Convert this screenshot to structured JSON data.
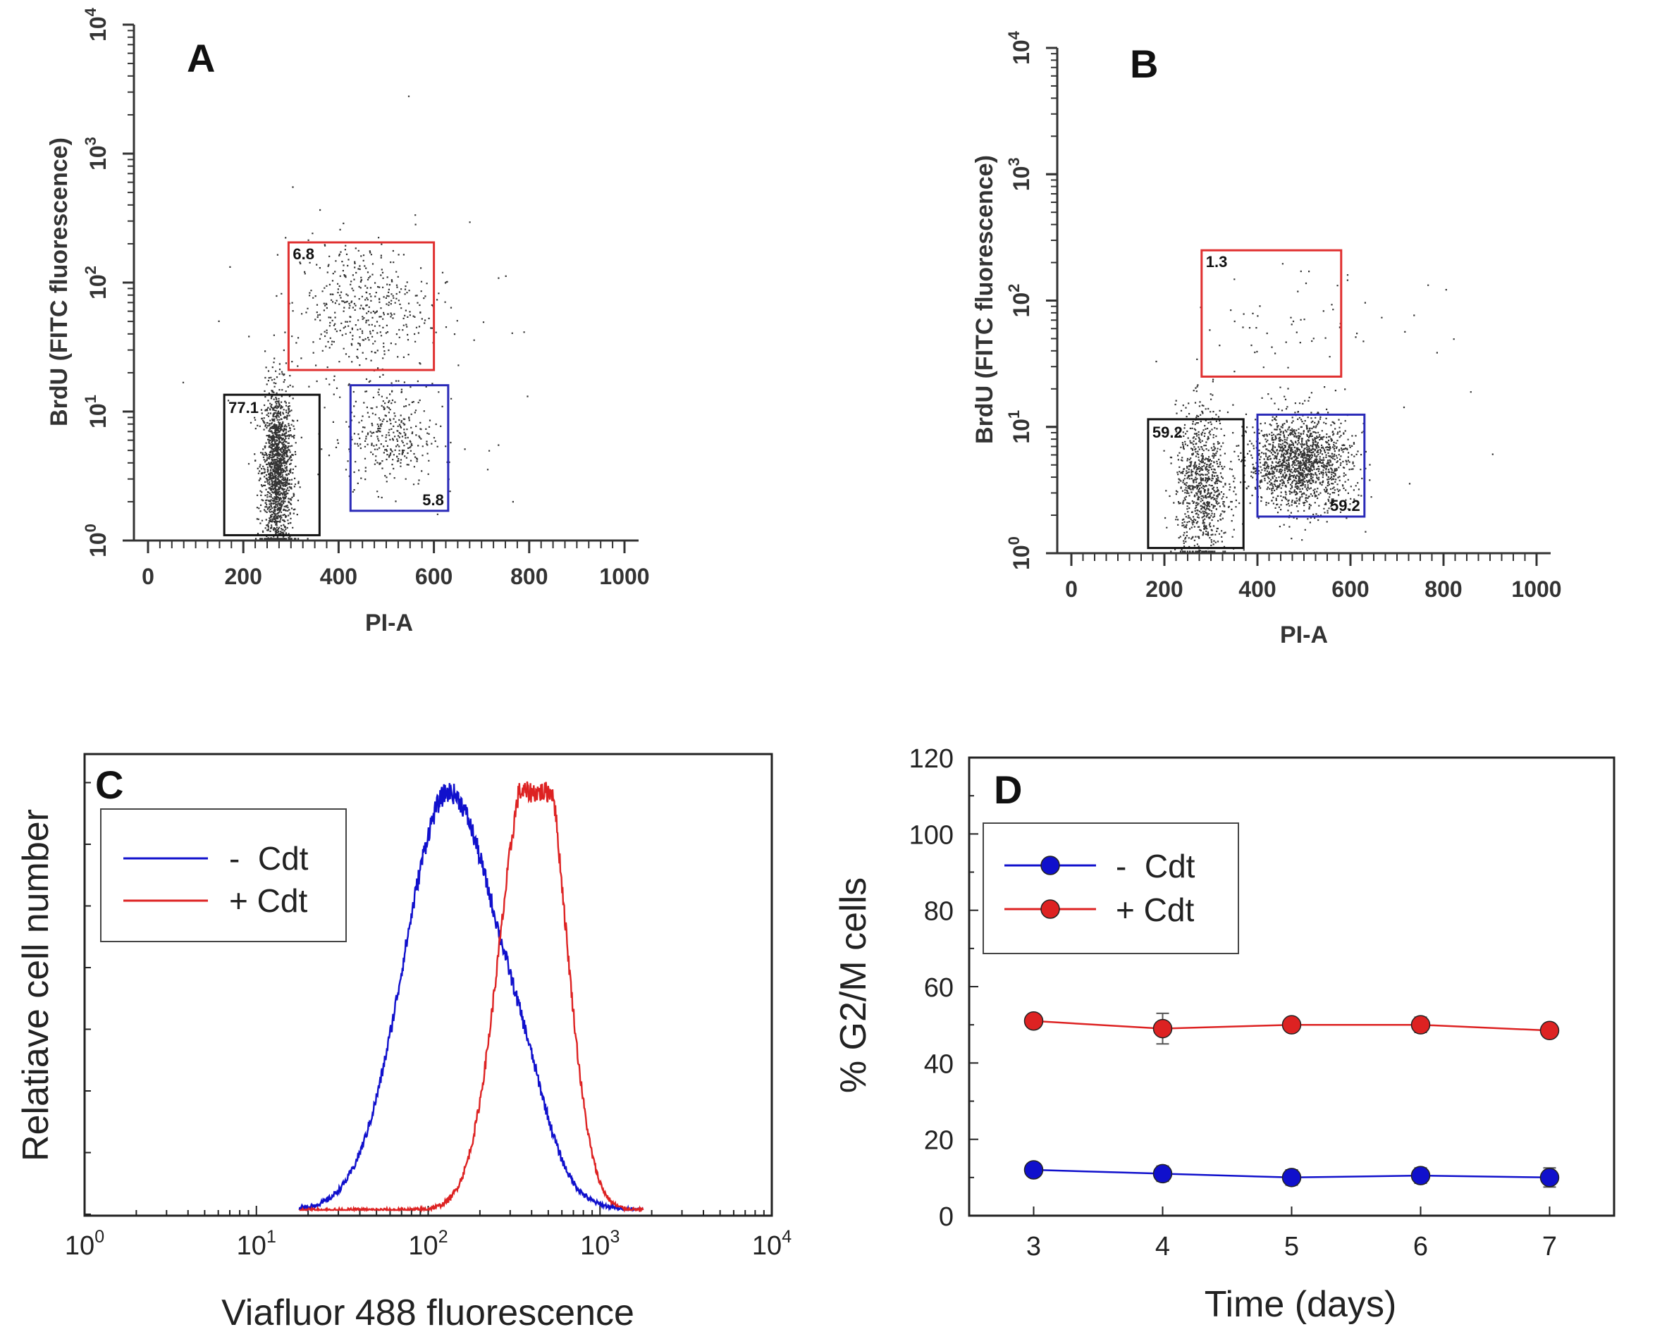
{
  "colors": {
    "minus_cdt": "#1010cc",
    "plus_cdt": "#dd2222",
    "gate_black": "#111111",
    "gate_red": "#e03030",
    "gate_blue": "#2a2ab8",
    "dots": "#333333"
  },
  "chart_data": [
    {
      "panel": "A",
      "type": "scatter",
      "xlabel": "PI-A",
      "ylabel": "BrdU (FITC fluorescence)",
      "x_range": [
        0,
        1000
      ],
      "y_scale": "log",
      "y_range": [
        1,
        10000
      ],
      "x_ticks": [
        "0",
        "200",
        "400",
        "600",
        "800",
        "1000"
      ],
      "y_ticks": [
        {
          "base": "10",
          "exp": "0"
        },
        {
          "base": "10",
          "exp": "1"
        },
        {
          "base": "10",
          "exp": "2"
        },
        {
          "base": "10",
          "exp": "3"
        },
        {
          "base": "10",
          "exp": "4"
        }
      ],
      "gates": [
        {
          "label": "77.1",
          "color": "black",
          "x": [
            160,
            360
          ],
          "y": [
            1.1,
            13.5
          ]
        },
        {
          "label": "6.8",
          "color": "red",
          "x": [
            295,
            600
          ],
          "y": [
            21,
            205
          ]
        },
        {
          "label": "5.8",
          "color": "blue",
          "x": [
            425,
            630
          ],
          "y": [
            1.7,
            16
          ]
        }
      ],
      "populations": [
        {
          "n": 1500,
          "x_mean": 270,
          "x_sd": 16,
          "logy_mean": 0.55,
          "logy_sd": 0.32
        },
        {
          "n": 320,
          "x_mean": 505,
          "x_sd": 45,
          "logy_mean": 0.82,
          "logy_sd": 0.2
        },
        {
          "n": 420,
          "x_mean": 445,
          "x_sd": 72,
          "logy_mean": 1.82,
          "logy_sd": 0.26
        },
        {
          "n": 70,
          "x_mean": 480,
          "x_sd": 180,
          "logy_mean": 1.3,
          "logy_sd": 0.6
        }
      ]
    },
    {
      "panel": "B",
      "type": "scatter",
      "xlabel": "PI-A",
      "ylabel": "BrdU (FITC fluorescence)",
      "x_range": [
        0,
        1000
      ],
      "y_scale": "log",
      "y_range": [
        1,
        10000
      ],
      "x_ticks": [
        "0",
        "200",
        "400",
        "600",
        "800",
        "1000"
      ],
      "y_ticks": [
        {
          "base": "10",
          "exp": "0"
        },
        {
          "base": "10",
          "exp": "1"
        },
        {
          "base": "10",
          "exp": "2"
        },
        {
          "base": "10",
          "exp": "3"
        },
        {
          "base": "10",
          "exp": "4"
        }
      ],
      "gates": [
        {
          "label": "59.2",
          "color": "black",
          "x": [
            165,
            370
          ],
          "y": [
            1.1,
            11.5
          ]
        },
        {
          "label": "1.3",
          "color": "red",
          "x": [
            280,
            580
          ],
          "y": [
            25,
            250
          ]
        },
        {
          "label": "59.2",
          "color": "blue",
          "x": [
            400,
            630
          ],
          "y": [
            1.95,
            12.5
          ]
        }
      ],
      "populations": [
        {
          "n": 850,
          "x_mean": 280,
          "x_sd": 28,
          "logy_mean": 0.55,
          "logy_sd": 0.3
        },
        {
          "n": 1500,
          "x_mean": 490,
          "x_sd": 55,
          "logy_mean": 0.72,
          "logy_sd": 0.18
        },
        {
          "n": 45,
          "x_mean": 460,
          "x_sd": 100,
          "logy_mean": 1.8,
          "logy_sd": 0.2
        },
        {
          "n": 40,
          "x_mean": 560,
          "x_sd": 150,
          "logy_mean": 1.2,
          "logy_sd": 0.5
        }
      ]
    },
    {
      "panel": "C",
      "type": "line",
      "xlabel": "Viafluor 488 fluorescence",
      "ylabel": "Relatiave cell number",
      "x_scale": "log",
      "x_range": [
        1,
        10000
      ],
      "x_ticks": [
        {
          "base": "10",
          "exp": "0"
        },
        {
          "base": "10",
          "exp": "1"
        },
        {
          "base": "10",
          "exp": "2"
        },
        {
          "base": "10",
          "exp": "3"
        },
        {
          "base": "10",
          "exp": "4"
        }
      ],
      "y_range": [
        0,
        100
      ],
      "y_ticks_labeled": false,
      "legend": {
        "position": "top-left",
        "entries": [
          "-  Cdt",
          "+ Cdt"
        ]
      },
      "series": [
        {
          "name": "-  Cdt",
          "color": "blue",
          "peak_log10x": 2.12,
          "peak": 100,
          "sd_left": 0.26,
          "sd_right": 0.3,
          "shoulder_log10x": 2.58,
          "shoulder": 10
        },
        {
          "name": "+ Cdt",
          "color": "red",
          "peak_log10x": 2.58,
          "peak": 100,
          "sd_left": 0.17,
          "sd_right": 0.16,
          "shoulder_log10x": 2.72,
          "shoulder": 35
        }
      ]
    },
    {
      "panel": "D",
      "type": "line",
      "xlabel": "Time (days)",
      "ylabel": "% G2/M cells",
      "x_range": [
        2.5,
        7.5
      ],
      "y_range": [
        0,
        120
      ],
      "x_ticks": [
        "3",
        "4",
        "5",
        "6",
        "7"
      ],
      "y_ticks": [
        "0",
        "20",
        "40",
        "60",
        "80",
        "100",
        "120"
      ],
      "legend": {
        "position": "top-left",
        "entries": [
          "-  Cdt",
          "+ Cdt"
        ]
      },
      "categories": [
        3,
        4,
        5,
        6,
        7
      ],
      "series": [
        {
          "name": "-  Cdt",
          "color": "blue",
          "values": [
            12,
            11,
            10,
            10.5,
            10
          ],
          "errors": [
            1.5,
            2,
            2,
            2,
            2.5
          ]
        },
        {
          "name": "+ Cdt",
          "color": "red",
          "values": [
            51,
            49,
            50,
            50,
            48.5
          ],
          "errors": [
            1,
            4,
            1.5,
            2,
            1.5
          ]
        }
      ]
    }
  ]
}
